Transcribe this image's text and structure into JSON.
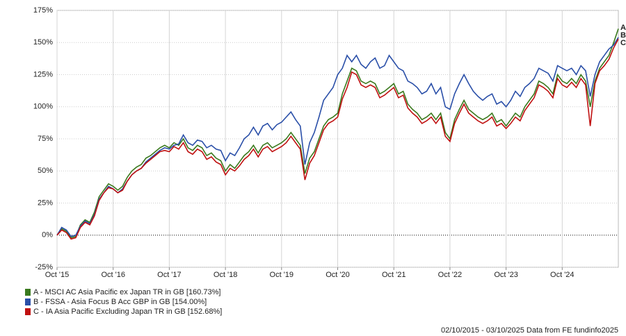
{
  "chart_data": {
    "type": "line",
    "source": "02/10/2015 - 03/10/2025 Data from FE fundinfo2025",
    "x": [
      "2015-10",
      "2015-11",
      "2015-12",
      "2016-01",
      "2016-02",
      "2016-03",
      "2016-04",
      "2016-05",
      "2016-06",
      "2016-07",
      "2016-08",
      "2016-09",
      "2016-10",
      "2016-11",
      "2016-12",
      "2017-01",
      "2017-02",
      "2017-03",
      "2017-04",
      "2017-05",
      "2017-06",
      "2017-07",
      "2017-08",
      "2017-09",
      "2017-10",
      "2017-11",
      "2017-12",
      "2018-01",
      "2018-02",
      "2018-03",
      "2018-04",
      "2018-05",
      "2018-06",
      "2018-07",
      "2018-08",
      "2018-09",
      "2018-10",
      "2018-11",
      "2018-12",
      "2019-01",
      "2019-02",
      "2019-03",
      "2019-04",
      "2019-05",
      "2019-06",
      "2019-07",
      "2019-08",
      "2019-09",
      "2019-10",
      "2019-11",
      "2019-12",
      "2020-01",
      "2020-02",
      "2020-03",
      "2020-04",
      "2020-05",
      "2020-06",
      "2020-07",
      "2020-08",
      "2020-09",
      "2020-10",
      "2020-11",
      "2020-12",
      "2021-01",
      "2021-02",
      "2021-03",
      "2021-04",
      "2021-05",
      "2021-06",
      "2021-07",
      "2021-08",
      "2021-09",
      "2021-10",
      "2021-11",
      "2021-12",
      "2022-01",
      "2022-02",
      "2022-03",
      "2022-04",
      "2022-05",
      "2022-06",
      "2022-07",
      "2022-08",
      "2022-09",
      "2022-10",
      "2022-11",
      "2022-12",
      "2023-01",
      "2023-02",
      "2023-03",
      "2023-04",
      "2023-05",
      "2023-06",
      "2023-07",
      "2023-08",
      "2023-09",
      "2023-10",
      "2023-11",
      "2023-12",
      "2024-01",
      "2024-02",
      "2024-03",
      "2024-04",
      "2024-05",
      "2024-06",
      "2024-07",
      "2024-08",
      "2024-09",
      "2024-10",
      "2024-11",
      "2024-12",
      "2025-01",
      "2025-02",
      "2025-03",
      "2025-04",
      "2025-05",
      "2025-06",
      "2025-07",
      "2025-08",
      "2025-09",
      "2025-10"
    ],
    "xlim": [
      "2015-10",
      "2025-10"
    ],
    "xticks": [
      {
        "value": "2015-10",
        "label": "Oct '15"
      },
      {
        "value": "2016-10",
        "label": "Oct '16"
      },
      {
        "value": "2017-10",
        "label": "Oct '17"
      },
      {
        "value": "2018-10",
        "label": "Oct '18"
      },
      {
        "value": "2019-10",
        "label": "Oct '19"
      },
      {
        "value": "2020-10",
        "label": "Oct '20"
      },
      {
        "value": "2021-10",
        "label": "Oct '21"
      },
      {
        "value": "2022-10",
        "label": "Oct '22"
      },
      {
        "value": "2023-10",
        "label": "Oct '23"
      },
      {
        "value": "2024-10",
        "label": "Oct '24"
      }
    ],
    "ylim": [
      -25,
      175
    ],
    "yticks": [
      {
        "value": -25,
        "label": "-25%"
      },
      {
        "value": 0,
        "label": "0%"
      },
      {
        "value": 25,
        "label": "25%"
      },
      {
        "value": 50,
        "label": "50%"
      },
      {
        "value": 75,
        "label": "75%"
      },
      {
        "value": 100,
        "label": "100%"
      },
      {
        "value": 125,
        "label": "125%"
      },
      {
        "value": 150,
        "label": "150%"
      },
      {
        "value": 175,
        "label": "175%"
      }
    ],
    "grid": true,
    "series": [
      {
        "name": "A - MSCI AC Asia Pacific ex Japan TR in GB [160.73%]",
        "tag": "A",
        "color": "#3a7a1e",
        "values": [
          0,
          5,
          3,
          -2,
          -1,
          8,
          12,
          10,
          18,
          30,
          35,
          40,
          38,
          35,
          38,
          45,
          50,
          53,
          55,
          60,
          62,
          65,
          68,
          70,
          68,
          72,
          70,
          75,
          68,
          66,
          70,
          68,
          62,
          64,
          60,
          58,
          50,
          55,
          52,
          57,
          62,
          65,
          70,
          64,
          70,
          72,
          68,
          70,
          72,
          75,
          80,
          75,
          70,
          48,
          60,
          65,
          75,
          85,
          90,
          92,
          95,
          110,
          120,
          130,
          128,
          120,
          118,
          120,
          118,
          110,
          112,
          115,
          118,
          110,
          112,
          102,
          98,
          95,
          90,
          92,
          95,
          90,
          95,
          80,
          75,
          90,
          98,
          105,
          98,
          95,
          92,
          90,
          92,
          95,
          88,
          90,
          85,
          90,
          95,
          92,
          100,
          105,
          110,
          120,
          118,
          115,
          110,
          125,
          120,
          118,
          122,
          118,
          125,
          120,
          100,
          120,
          130,
          135,
          140,
          150,
          160.73
        ]
      },
      {
        "name": "B - FSSA - Asia Focus B Acc GBP in GB [154.00%]",
        "tag": "B",
        "color": "#2a4fa8",
        "values": [
          0,
          6,
          4,
          -1,
          0,
          7,
          11,
          9,
          16,
          28,
          33,
          38,
          36,
          33,
          36,
          42,
          47,
          50,
          52,
          57,
          60,
          63,
          66,
          68,
          67,
          70,
          71,
          78,
          72,
          70,
          74,
          73,
          68,
          70,
          67,
          66,
          58,
          64,
          62,
          68,
          75,
          78,
          84,
          78,
          85,
          87,
          82,
          86,
          88,
          92,
          96,
          90,
          85,
          55,
          72,
          80,
          92,
          105,
          110,
          115,
          125,
          130,
          140,
          135,
          140,
          133,
          130,
          135,
          138,
          130,
          132,
          140,
          135,
          130,
          128,
          120,
          118,
          115,
          110,
          112,
          118,
          110,
          115,
          100,
          98,
          110,
          118,
          125,
          118,
          112,
          108,
          105,
          108,
          110,
          102,
          104,
          100,
          105,
          112,
          108,
          115,
          118,
          122,
          130,
          128,
          126,
          120,
          132,
          130,
          128,
          130,
          125,
          132,
          128,
          108,
          125,
          135,
          140,
          145,
          148,
          154.0
        ]
      },
      {
        "name": "C - IA Asia Pacific Excluding Japan TR in GB [152.68%]",
        "tag": "C",
        "color": "#c01010",
        "values": [
          0,
          4,
          2,
          -3,
          -2,
          6,
          10,
          8,
          15,
          27,
          33,
          37,
          36,
          33,
          35,
          42,
          47,
          50,
          52,
          56,
          59,
          62,
          65,
          66,
          65,
          69,
          67,
          72,
          65,
          63,
          67,
          65,
          59,
          61,
          57,
          55,
          47,
          52,
          50,
          54,
          59,
          62,
          67,
          61,
          67,
          69,
          65,
          67,
          69,
          72,
          77,
          72,
          67,
          43,
          56,
          62,
          72,
          82,
          87,
          89,
          92,
          106,
          115,
          127,
          125,
          117,
          115,
          117,
          115,
          107,
          109,
          112,
          115,
          107,
          109,
          99,
          95,
          92,
          87,
          89,
          92,
          87,
          92,
          77,
          73,
          87,
          95,
          102,
          95,
          92,
          89,
          87,
          89,
          92,
          85,
          87,
          83,
          87,
          92,
          89,
          97,
          102,
          107,
          117,
          115,
          112,
          107,
          122,
          117,
          115,
          119,
          115,
          122,
          117,
          85,
          118,
          128,
          132,
          137,
          146,
          152.68
        ]
      }
    ]
  }
}
